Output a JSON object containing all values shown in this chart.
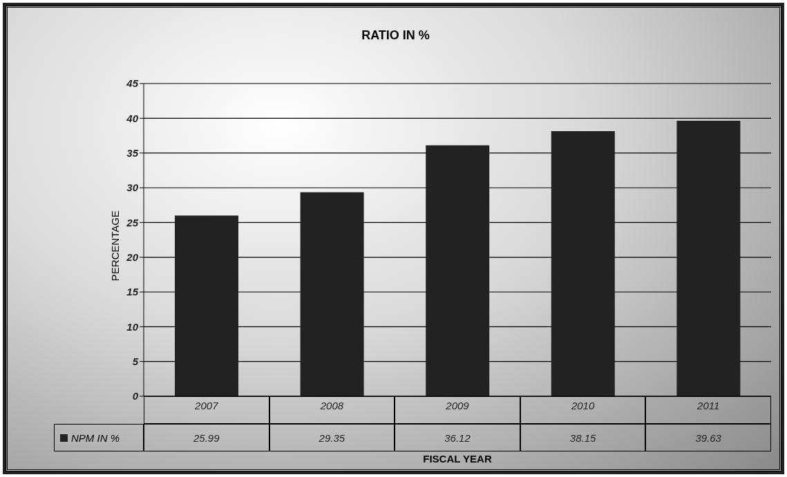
{
  "chart_data": {
    "type": "bar",
    "title": "RATIO IN %",
    "xlabel": "FISCAL YEAR",
    "ylabel": "PERCENTAGE",
    "categories": [
      "2007",
      "2008",
      "2009",
      "2010",
      "2011"
    ],
    "series": [
      {
        "name": "NPM IN %",
        "color": "#222222",
        "values": [
          25.99,
          29.35,
          36.12,
          38.15,
          39.63
        ]
      }
    ],
    "ylim": [
      0,
      45
    ],
    "yticks": [
      0,
      5,
      10,
      15,
      20,
      25,
      30,
      35,
      40,
      45
    ],
    "grid": "y",
    "legend": "bottom left",
    "data_labels": true
  }
}
